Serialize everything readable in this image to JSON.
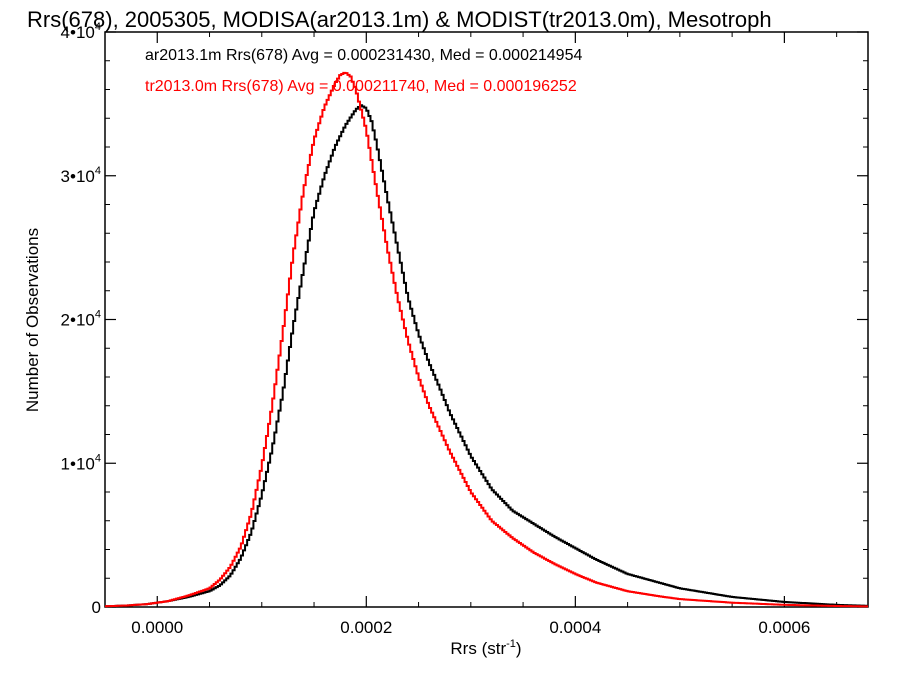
{
  "chart_data": {
    "type": "line",
    "step": true,
    "title": "Rrs(678), 2005305, MODISA(ar2013.1m) & MODIST(tr2013.0m), Mesotroph",
    "xlabel_main": "Rrs (str",
    "xlabel_sup": "-1",
    "xlabel_end": ")",
    "ylabel": "Number of Observations",
    "xlim": [
      -5e-05,
      0.00068
    ],
    "ylim": [
      0,
      40000
    ],
    "x_ticks": [
      {
        "value": 0.0,
        "label": "0.0000"
      },
      {
        "value": 0.0002,
        "label": "0.0002"
      },
      {
        "value": 0.0004,
        "label": "0.0004"
      },
      {
        "value": 0.0006,
        "label": "0.0006"
      }
    ],
    "y_ticks": [
      {
        "value": 0,
        "label": "0",
        "sup": ""
      },
      {
        "value": 10000,
        "label": "1•10",
        "sup": "4"
      },
      {
        "value": 20000,
        "label": "2•10",
        "sup": "4"
      },
      {
        "value": 30000,
        "label": "3•10",
        "sup": "4"
      },
      {
        "value": 40000,
        "label": "4•10",
        "sup": "4"
      }
    ],
    "grid": false,
    "legend_position": "top-left",
    "series": [
      {
        "name": "ar2013.1m",
        "color": "#000000",
        "annotation": "ar2013.1m Rrs(678) Avg = 0.000231430, Med = 0.000214954",
        "x": [
          -5e-05,
          -3e-05,
          -1e-05,
          1e-05,
          3e-05,
          5e-05,
          6e-05,
          7e-05,
          8e-05,
          9e-05,
          0.0001,
          0.00011,
          0.00012,
          0.00013,
          0.00014,
          0.00015,
          0.00016,
          0.00017,
          0.00018,
          0.00019,
          0.000195,
          0.0002,
          0.000205,
          0.00021,
          0.00022,
          0.00023,
          0.00024,
          0.00025,
          0.00026,
          0.00027,
          0.00028,
          0.0003,
          0.00032,
          0.00034,
          0.00036,
          0.00038,
          0.0004,
          0.00042,
          0.00045,
          0.00048,
          0.0005,
          0.00055,
          0.0006,
          0.00065,
          0.00068
        ],
        "y": [
          50,
          100,
          200,
          400,
          700,
          1100,
          1500,
          2200,
          3400,
          5200,
          7800,
          11000,
          14800,
          19500,
          23500,
          27500,
          30000,
          32000,
          33500,
          34600,
          34900,
          34700,
          33800,
          32200,
          28500,
          25000,
          21500,
          19000,
          17000,
          15300,
          13500,
          10500,
          8200,
          6700,
          5800,
          4900,
          4100,
          3300,
          2300,
          1700,
          1300,
          700,
          350,
          150,
          80
        ]
      },
      {
        "name": "tr2013.0m",
        "color": "#ff0000",
        "annotation": "tr2013.0m Rrs(678) Avg = 0.000211740, Med = 0.000196252",
        "x": [
          -5e-05,
          -3e-05,
          -1e-05,
          1e-05,
          3e-05,
          5e-05,
          6e-05,
          7e-05,
          8e-05,
          9e-05,
          0.0001,
          0.00011,
          0.00012,
          0.00013,
          0.00014,
          0.00015,
          0.00016,
          0.00017,
          0.000175,
          0.00018,
          0.000185,
          0.00019,
          0.0002,
          0.00021,
          0.00022,
          0.00023,
          0.00024,
          0.00025,
          0.00026,
          0.00028,
          0.0003,
          0.00032,
          0.00034,
          0.00036,
          0.00038,
          0.0004,
          0.00042,
          0.00045,
          0.00048,
          0.0005,
          0.00055,
          0.0006,
          0.00065,
          0.00068
        ],
        "y": [
          50,
          100,
          200,
          400,
          800,
          1300,
          1900,
          2800,
          4200,
          6500,
          9800,
          14000,
          19000,
          24500,
          29000,
          32500,
          34800,
          36400,
          37000,
          37200,
          36900,
          36000,
          33200,
          29000,
          25000,
          21500,
          18500,
          16000,
          14000,
          10800,
          8000,
          6000,
          4800,
          3800,
          3000,
          2300,
          1700,
          1100,
          750,
          550,
          300,
          150,
          70,
          40
        ]
      }
    ]
  }
}
